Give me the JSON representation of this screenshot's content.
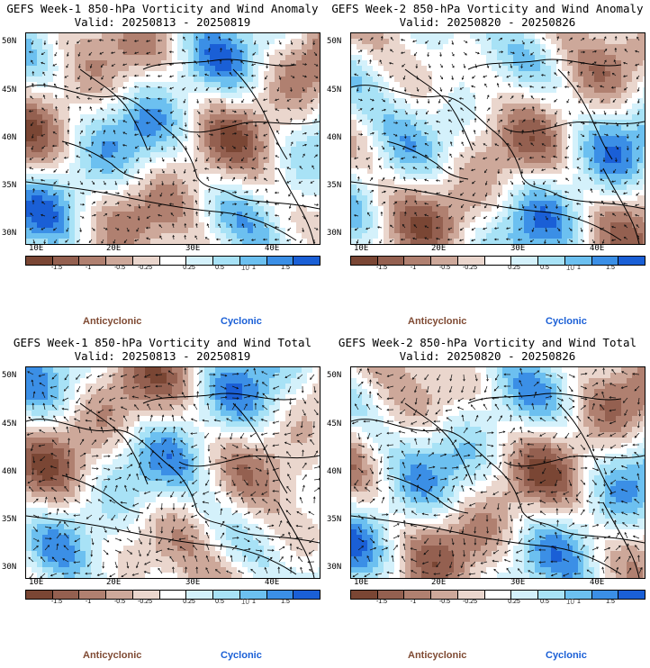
{
  "panels": [
    {
      "title_line1": "GEFS Week-1 850-hPa Vorticity and Wind Anomaly",
      "title_line2": "Valid: 20250813 - 20250819"
    },
    {
      "title_line1": "GEFS Week-2 850-hPa Vorticity and Wind Anomaly",
      "title_line2": "Valid: 20250820 - 20250826"
    },
    {
      "title_line1": "GEFS Week-1 850-hPa Vorticity and Wind Total",
      "title_line2": "Valid: 20250813 - 20250819"
    },
    {
      "title_line1": "GEFS Week-2 850-hPa Vorticity and Wind Total",
      "title_line2": "Valid: 20250820 - 20250826"
    }
  ],
  "axes": {
    "lat_labels": [
      "50N",
      "45N",
      "40N",
      "35N",
      "30N"
    ],
    "lon_labels": [
      "10E",
      "20E",
      "30E",
      "40E"
    ]
  },
  "colorbar": {
    "labels": [
      "-1.5",
      "-1",
      "-0.5",
      "-0.25",
      "0.25",
      "0.5",
      "1",
      "1.5"
    ],
    "unit": "10",
    "colors": [
      "#7a4634",
      "#946050",
      "#b08070",
      "#cda89a",
      "#ead6cd",
      "#ffffff",
      "#d4f1fb",
      "#a8e2f6",
      "#6cc0f0",
      "#3b8fe6",
      "#1a5fd6"
    ]
  },
  "legend": {
    "anticyclonic": "Anticyclonic",
    "cyclonic": "Cyclonic",
    "anticyclonic_color": "#7f4a33",
    "cyclonic_color": "#1a5fd6"
  }
}
